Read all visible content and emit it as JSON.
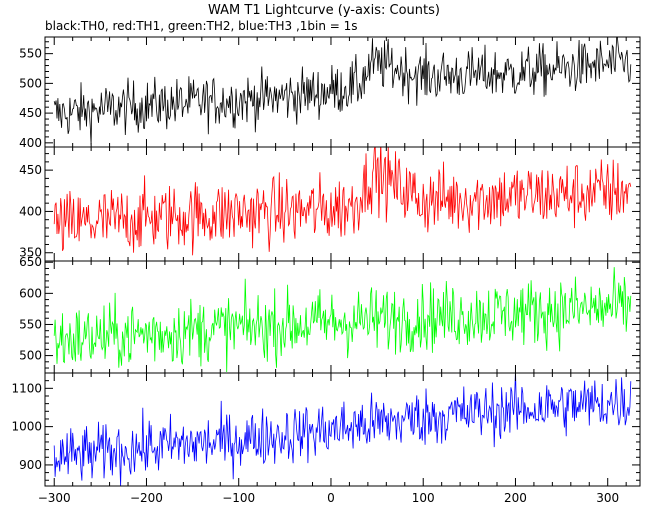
{
  "header": {
    "title": "WAM T1 Lightcurve (y-axis: Counts)",
    "subtitle": "black:TH0, red:TH1, green:TH2, blue:TH3 ,1bin = 1s"
  },
  "chart_data": {
    "type": "line",
    "title": "WAM T1 Lightcurve (y-axis: Counts)",
    "subtitle": "black:TH0, red:TH1, green:TH2, blue:TH3 ,1bin = 1s",
    "x_range": [
      -310,
      335
    ],
    "x_ticks": [
      -300,
      -200,
      -100,
      0,
      100,
      200,
      300
    ],
    "x_tick_labels": [
      "−300",
      "−200",
      "−100",
      "0",
      "100",
      "200",
      "300"
    ],
    "bin_seconds": 1,
    "panels": [
      {
        "series_name": "TH0",
        "color": "#000000",
        "ylim": [
          393,
          578
        ],
        "y_ticks": [
          400,
          450,
          500,
          550
        ],
        "y_tick_labels": [
          "400",
          "450",
          "500",
          "550"
        ],
        "trend": [
          [
            -300,
            448
          ],
          [
            -200,
            463
          ],
          [
            -100,
            472
          ],
          [
            -50,
            478
          ],
          [
            0,
            488
          ],
          [
            30,
            497
          ],
          [
            45,
            532
          ],
          [
            60,
            530
          ],
          [
            100,
            512
          ],
          [
            200,
            517
          ],
          [
            300,
            532
          ],
          [
            325,
            536
          ]
        ],
        "noise": 22
      },
      {
        "series_name": "TH1",
        "color": "#ff0000",
        "ylim": [
          340,
          478
        ],
        "y_ticks": [
          350,
          400,
          450
        ],
        "y_tick_labels": [
          "350",
          "400",
          "450"
        ],
        "trend": [
          [
            -300,
            382
          ],
          [
            -200,
            392
          ],
          [
            -100,
            398
          ],
          [
            0,
            402
          ],
          [
            25,
            408
          ],
          [
            45,
            448
          ],
          [
            70,
            432
          ],
          [
            100,
            413
          ],
          [
            200,
            418
          ],
          [
            300,
            423
          ],
          [
            325,
            426
          ]
        ],
        "noise": 21
      },
      {
        "series_name": "TH2",
        "color": "#00ff00",
        "ylim": [
          472,
          652
        ],
        "y_ticks": [
          500,
          550,
          600,
          650
        ],
        "y_tick_labels": [
          "500",
          "550",
          "600",
          "650"
        ],
        "trend": [
          [
            -300,
            525
          ],
          [
            -200,
            535
          ],
          [
            -100,
            545
          ],
          [
            0,
            553
          ],
          [
            100,
            562
          ],
          [
            200,
            569
          ],
          [
            300,
            576
          ],
          [
            325,
            578
          ]
        ],
        "noise": 27
      },
      {
        "series_name": "TH3",
        "color": "#0000ff",
        "ylim": [
          845,
          1140
        ],
        "y_ticks": [
          900,
          1000,
          1100
        ],
        "y_tick_labels": [
          "900",
          "1000",
          "1100"
        ],
        "trend": [
          [
            -300,
            918
          ],
          [
            -200,
            945
          ],
          [
            -100,
            965
          ],
          [
            0,
            992
          ],
          [
            100,
            1025
          ],
          [
            200,
            1045
          ],
          [
            300,
            1062
          ],
          [
            325,
            1065
          ]
        ],
        "noise": 38
      }
    ]
  }
}
